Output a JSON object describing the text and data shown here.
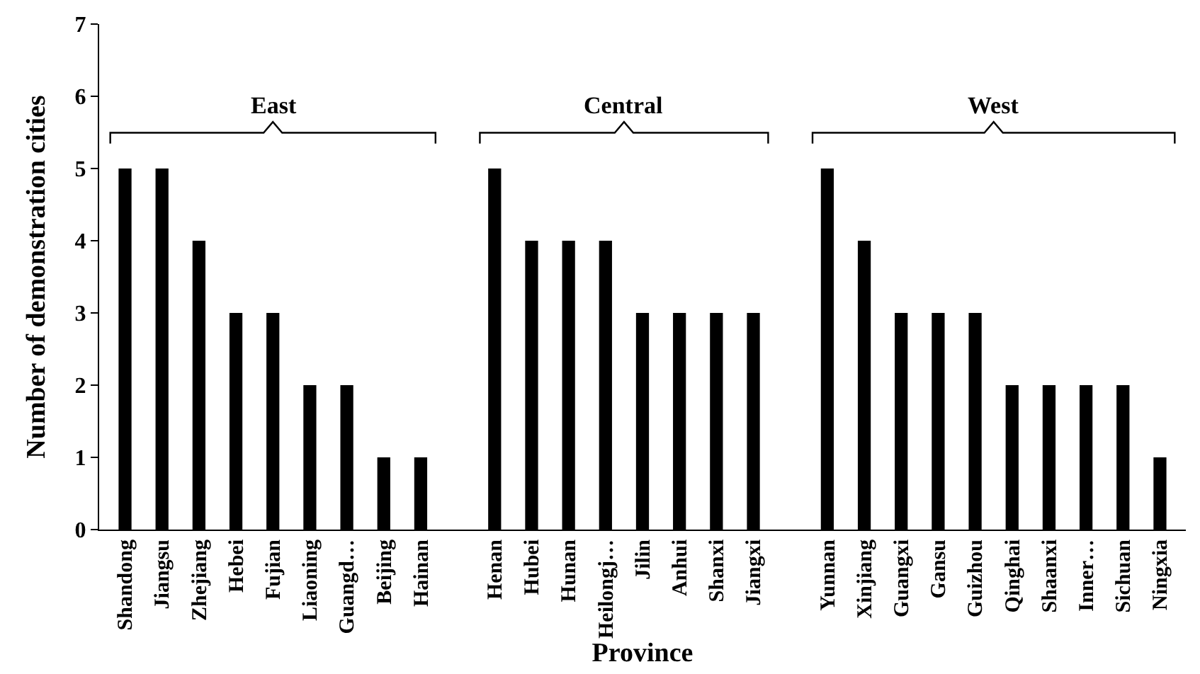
{
  "chart_data": {
    "type": "bar",
    "xlabel": "Province",
    "ylabel": "Number of demonstration cities",
    "categories": [
      "Shandong",
      "Jiangsu",
      "Zhejiang",
      "Hebei",
      "Fujian",
      "Liaoning",
      "Guangd…",
      "Beijing",
      "Hainan",
      null,
      "Henan",
      "Hubei",
      "Hunan",
      "Heilongj…",
      "Jilin",
      "Anhui",
      "Shanxi",
      "Jiangxi",
      null,
      "Yunnan",
      "Xinjiang",
      "Guangxi",
      "Gansu",
      "Guizhou",
      "Qinghai",
      "Shaanxi",
      "Inner…",
      "Sichuan",
      "Ningxia"
    ],
    "values": [
      5,
      5,
      4,
      3,
      3,
      2,
      2,
      1,
      1,
      null,
      5,
      4,
      4,
      4,
      3,
      3,
      3,
      3,
      null,
      5,
      4,
      3,
      3,
      3,
      2,
      2,
      2,
      2,
      1
    ],
    "color": "#000000",
    "annotations": [
      "East",
      "Central",
      "West"
    ],
    "ylim": [
      0,
      7
    ],
    "yticks": [
      0,
      1,
      2,
      3,
      4,
      5,
      6,
      7
    ],
    "legend": false
  }
}
